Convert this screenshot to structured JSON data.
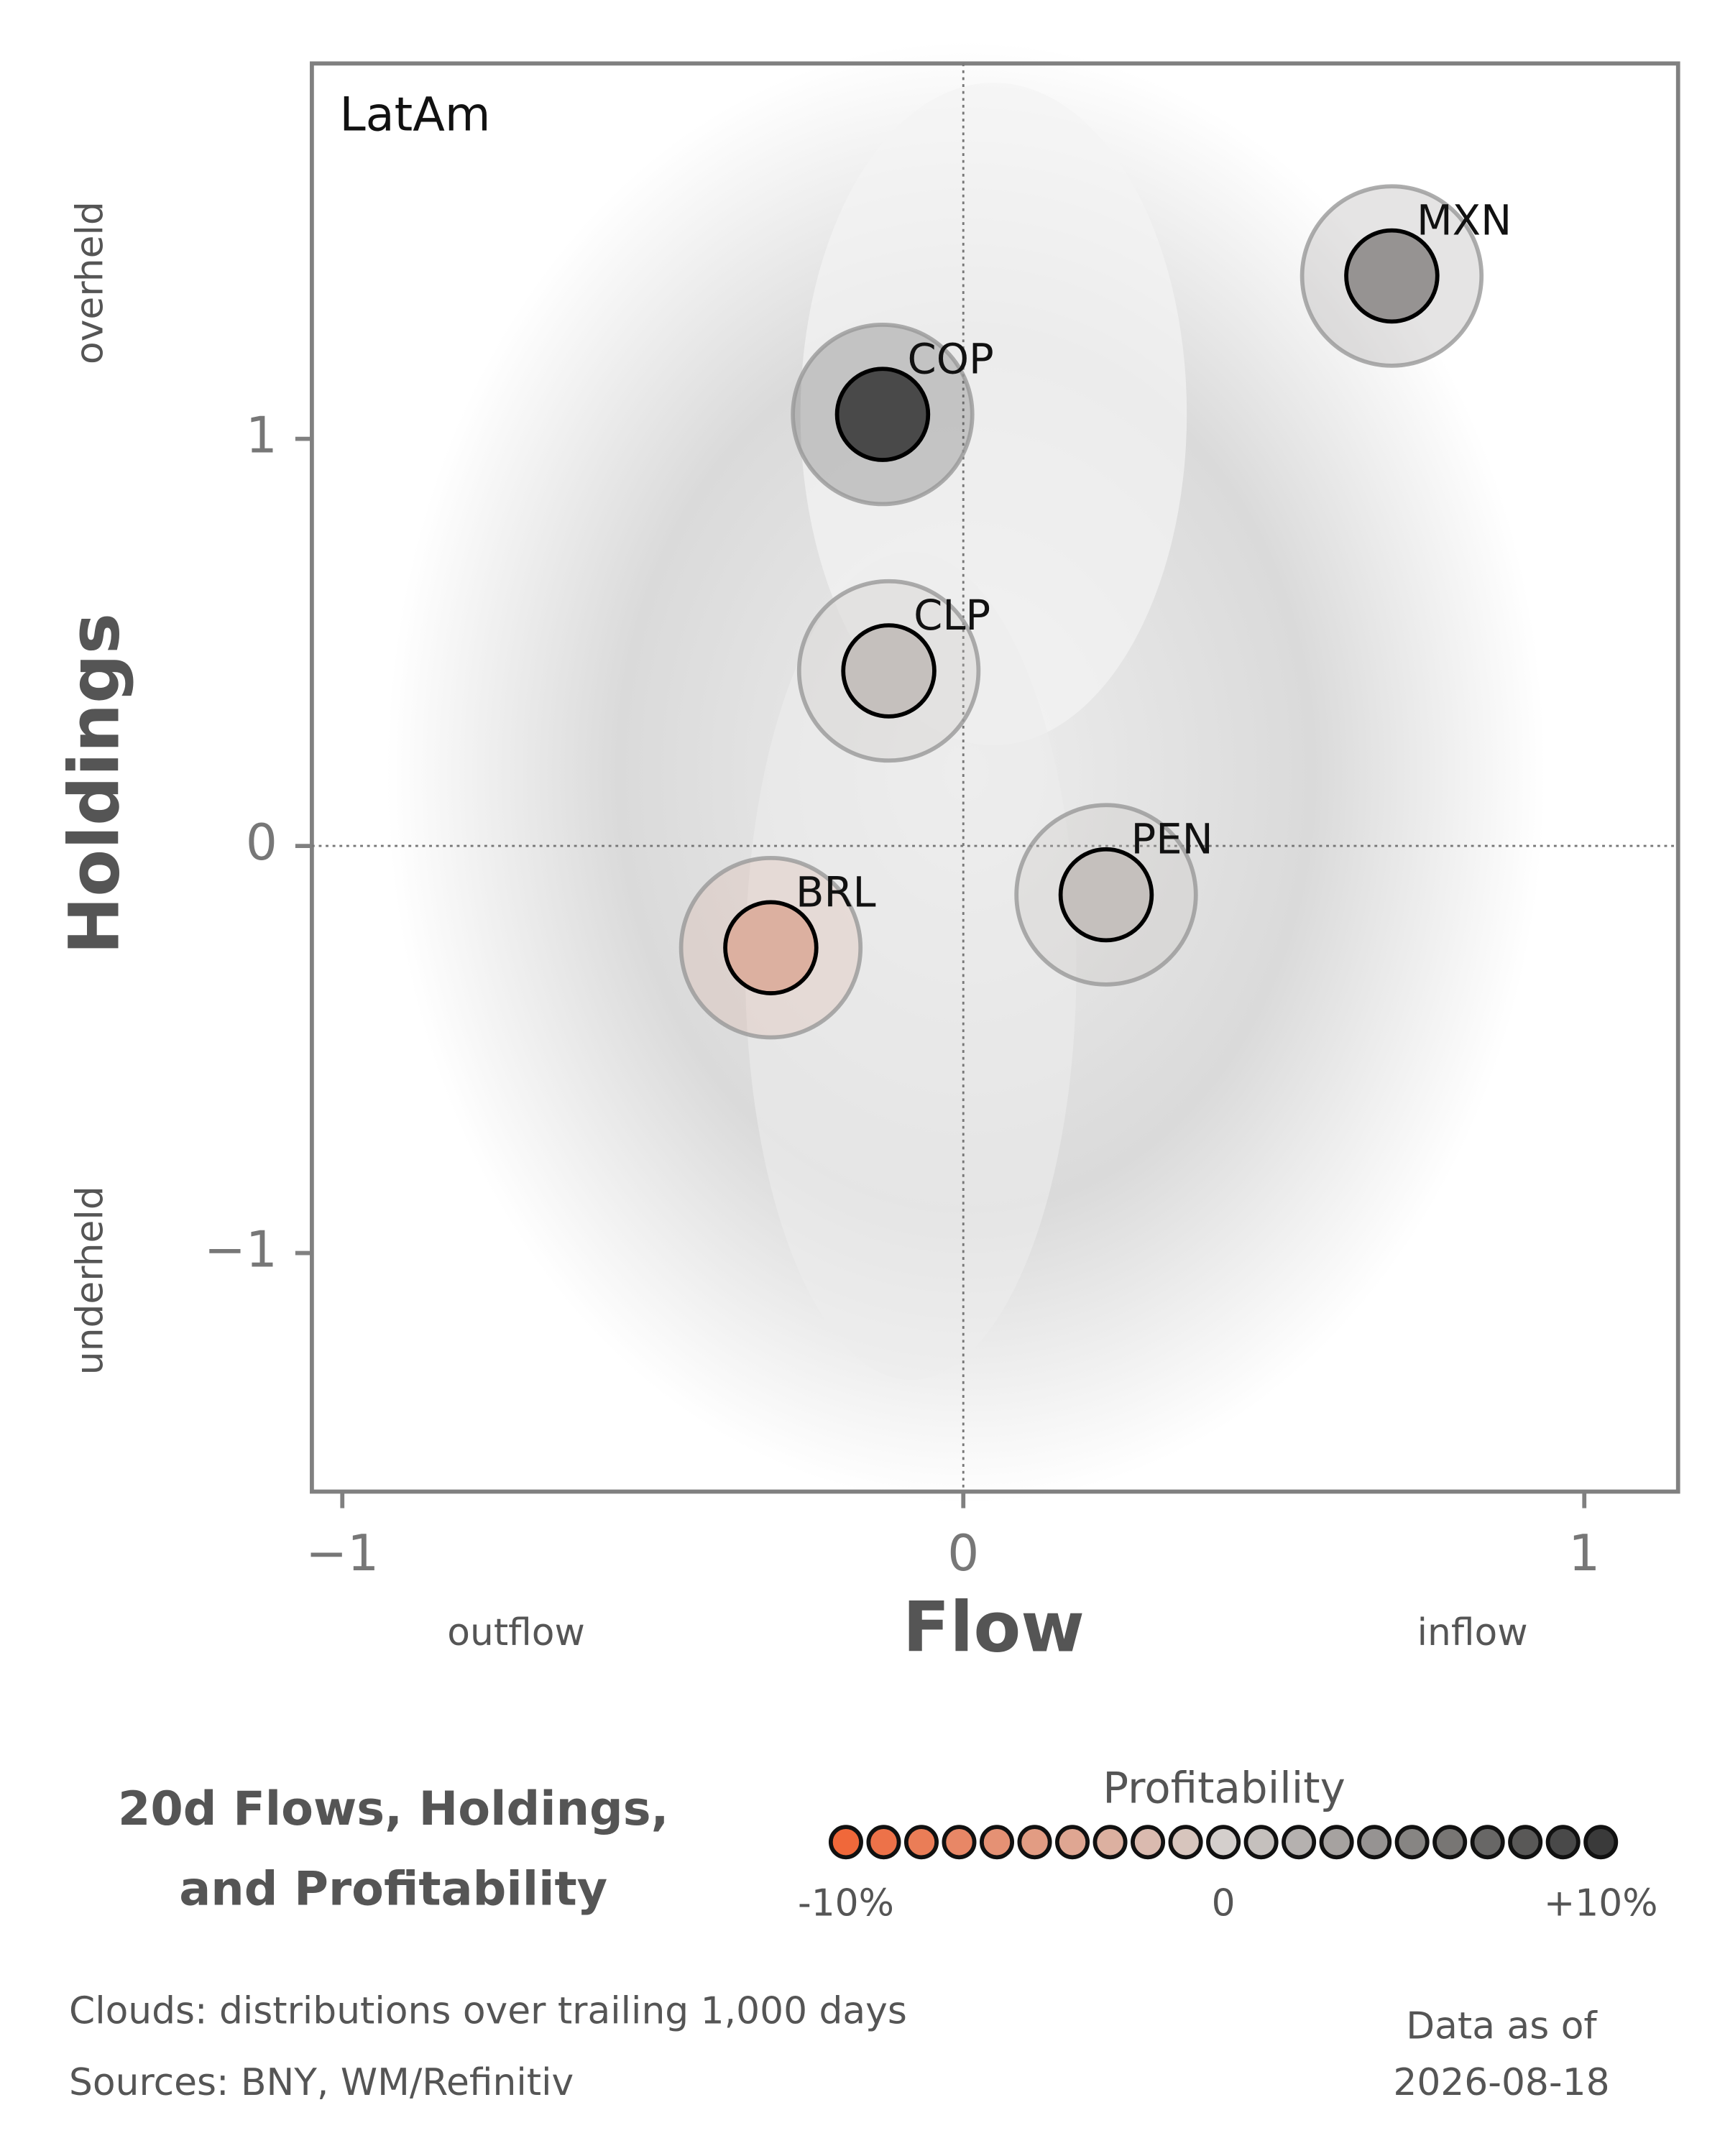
{
  "chart_data": {
    "type": "scatter",
    "panel_label": "LatAm",
    "x_label": "Flow",
    "y_label": "Holdings",
    "x_annotations": [
      "outflow",
      "inflow"
    ],
    "y_annotations": [
      "overheld",
      "underheld"
    ],
    "xlim": [
      -1.049,
      1.151
    ],
    "ylim": [
      -1.586,
      1.922
    ],
    "xticks": [
      {
        "value": -1,
        "label": "−1"
      },
      0,
      1
    ],
    "yticks": [
      {
        "value": -1,
        "label": "−1"
      },
      0,
      1
    ],
    "points": [
      {
        "label": "MXN",
        "x": 0.69,
        "y": 1.4,
        "profitability": 4
      },
      {
        "label": "COP",
        "x": -0.13,
        "y": 1.06,
        "profitability": 9
      },
      {
        "label": "CLP",
        "x": -0.12,
        "y": 0.43,
        "profitability": 1
      },
      {
        "label": "PEN",
        "x": 0.23,
        "y": -0.12,
        "profitability": 1
      },
      {
        "label": "BRL",
        "x": -0.31,
        "y": -0.25,
        "profitability": -3
      }
    ],
    "colorbar": {
      "title": "Profitability",
      "clim": [
        -10,
        10
      ],
      "colors": [
        "#f0683a",
        "#d4cfcc",
        "#3a3a3a"
      ],
      "ticks": [
        {
          "value": -10,
          "label": "-10%"
        },
        0,
        {
          "value": 10,
          "label": "+10%"
        }
      ]
    },
    "title": [
      "20d Flows, Holdings,",
      "and Profitability"
    ],
    "footnotes": [
      "Clouds:  distributions over trailing 1,000 days",
      "Sources:  BNY, WM/Refinitiv"
    ],
    "as_of": [
      "Data as of",
      "2026-08-18"
    ]
  }
}
